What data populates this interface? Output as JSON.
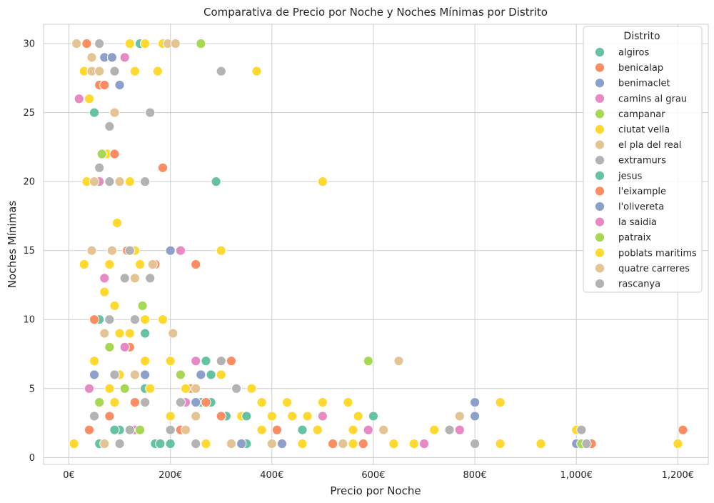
{
  "chart_data": {
    "type": "scatter",
    "title": "Comparativa de Precio por Noche y Noches Mínimas por Distrito",
    "xlabel": "Precio por Noche",
    "ylabel": "Noches Mínimas",
    "xlim": [
      -50,
      1260
    ],
    "ylim": [
      -0.5,
      31.4
    ],
    "x_ticks": [
      0,
      200,
      400,
      600,
      800,
      1000,
      1200
    ],
    "x_tick_labels": [
      "0€",
      "200€",
      "400€",
      "600€",
      "800€",
      "1,000€",
      "1,200€"
    ],
    "y_ticks": [
      0,
      5,
      10,
      15,
      20,
      25,
      30
    ],
    "y_tick_labels": [
      "0",
      "5",
      "10",
      "15",
      "20",
      "25",
      "30"
    ],
    "grid": true,
    "legend": {
      "title": "Distrito",
      "placement": "top-right"
    },
    "series": [
      {
        "name": "algiros",
        "color": "#66c2a5",
        "points": [
          [
            140,
            30
          ],
          [
            50,
            25
          ],
          [
            290,
            20
          ],
          [
            60,
            10
          ],
          [
            150,
            9
          ],
          [
            270,
            7
          ],
          [
            280,
            6
          ],
          [
            150,
            5
          ],
          [
            260,
            4
          ],
          [
            310,
            3
          ],
          [
            600,
            3
          ],
          [
            100,
            2
          ],
          [
            170,
            1
          ],
          [
            200,
            1
          ],
          [
            350,
            1
          ],
          [
            60,
            1
          ]
        ]
      },
      {
        "name": "benicalap",
        "color": "#fc8d62",
        "points": [
          [
            35,
            30
          ],
          [
            150,
            30
          ],
          [
            60,
            27
          ],
          [
            70,
            27
          ],
          [
            90,
            22
          ],
          [
            185,
            21
          ],
          [
            170,
            14
          ],
          [
            250,
            14
          ],
          [
            115,
            15
          ],
          [
            50,
            10
          ],
          [
            120,
            8
          ],
          [
            320,
            7
          ],
          [
            240,
            5
          ],
          [
            270,
            4
          ],
          [
            300,
            3
          ],
          [
            410,
            2
          ],
          [
            1210,
            2
          ],
          [
            520,
            1
          ],
          [
            580,
            1
          ],
          [
            1030,
            1
          ],
          [
            80,
            3
          ],
          [
            220,
            2
          ],
          [
            40,
            2
          ],
          [
            130,
            4
          ]
        ]
      },
      {
        "name": "benimaclet",
        "color": "#8da0cb",
        "points": [
          [
            70,
            29
          ],
          [
            85,
            29
          ],
          [
            100,
            27
          ],
          [
            200,
            15
          ],
          [
            50,
            6
          ],
          [
            260,
            6
          ],
          [
            250,
            4
          ],
          [
            800,
            4
          ],
          [
            800,
            3
          ],
          [
            1000,
            1
          ],
          [
            420,
            1
          ],
          [
            340,
            1
          ],
          [
            130,
            2
          ],
          [
            180,
            1
          ]
        ]
      },
      {
        "name": "camins al grau",
        "color": "#e78ac3",
        "points": [
          [
            110,
            29
          ],
          [
            20,
            26
          ],
          [
            60,
            20
          ],
          [
            220,
            15
          ],
          [
            70,
            13
          ],
          [
            110,
            8
          ],
          [
            250,
            7
          ],
          [
            40,
            5
          ],
          [
            230,
            4
          ],
          [
            500,
            3
          ],
          [
            770,
            2
          ],
          [
            700,
            1
          ],
          [
            590,
            2
          ],
          [
            130,
            2
          ],
          [
            300,
            3
          ]
        ]
      },
      {
        "name": "campanar",
        "color": "#a6d854",
        "points": [
          [
            260,
            30
          ],
          [
            65,
            22
          ],
          [
            145,
            11
          ],
          [
            80,
            8
          ],
          [
            590,
            7
          ],
          [
            220,
            6
          ],
          [
            110,
            5
          ],
          [
            60,
            4
          ],
          [
            1010,
            1
          ],
          [
            140,
            2
          ]
        ]
      },
      {
        "name": "ciutat vella",
        "color": "#ffd92f",
        "points": [
          [
            120,
            30
          ],
          [
            150,
            30
          ],
          [
            185,
            30
          ],
          [
            370,
            28
          ],
          [
            175,
            28
          ],
          [
            130,
            28
          ],
          [
            30,
            28
          ],
          [
            40,
            26
          ],
          [
            75,
            22
          ],
          [
            35,
            20
          ],
          [
            120,
            20
          ],
          [
            500,
            20
          ],
          [
            95,
            17
          ],
          [
            300,
            15
          ],
          [
            130,
            15
          ],
          [
            30,
            14
          ],
          [
            80,
            14
          ],
          [
            140,
            14
          ],
          [
            70,
            12
          ],
          [
            90,
            11
          ],
          [
            150,
            10
          ],
          [
            185,
            10
          ],
          [
            100,
            9
          ],
          [
            120,
            9
          ],
          [
            80,
            8
          ],
          [
            50,
            7
          ],
          [
            150,
            7
          ],
          [
            200,
            7
          ],
          [
            300,
            6
          ],
          [
            360,
            5
          ],
          [
            230,
            5
          ],
          [
            80,
            5
          ],
          [
            430,
            4
          ],
          [
            500,
            4
          ],
          [
            550,
            4
          ],
          [
            850,
            4
          ],
          [
            380,
            4
          ],
          [
            90,
            4
          ],
          [
            570,
            3
          ],
          [
            470,
            3
          ],
          [
            340,
            3
          ],
          [
            400,
            3
          ],
          [
            440,
            3
          ],
          [
            720,
            2
          ],
          [
            1000,
            2
          ],
          [
            490,
            2
          ],
          [
            560,
            2
          ],
          [
            380,
            2
          ],
          [
            10,
            1
          ],
          [
            460,
            1
          ],
          [
            640,
            1
          ],
          [
            850,
            1
          ],
          [
            930,
            1
          ],
          [
            1200,
            1
          ],
          [
            270,
            1
          ],
          [
            560,
            1
          ],
          [
            680,
            1
          ],
          [
            100,
            6
          ],
          [
            200,
            3
          ],
          [
            160,
            5
          ]
        ]
      },
      {
        "name": "el pla del real",
        "color": "#e5c494",
        "points": [
          [
            15,
            30
          ],
          [
            195,
            30
          ],
          [
            210,
            30
          ],
          [
            45,
            29
          ],
          [
            60,
            28
          ],
          [
            45,
            28
          ],
          [
            90,
            25
          ],
          [
            50,
            20
          ],
          [
            100,
            20
          ],
          [
            45,
            15
          ],
          [
            85,
            15
          ],
          [
            165,
            14
          ],
          [
            130,
            13
          ],
          [
            70,
            9
          ],
          [
            205,
            9
          ],
          [
            250,
            5
          ],
          [
            650,
            7
          ],
          [
            620,
            2
          ],
          [
            770,
            3
          ],
          [
            540,
            1
          ],
          [
            250,
            3
          ],
          [
            320,
            1
          ],
          [
            130,
            6
          ],
          [
            230,
            2
          ],
          [
            70,
            1
          ],
          [
            400,
            1
          ]
        ]
      },
      {
        "name": "extramurs",
        "color": "#b3b3b3",
        "points": [
          [
            60,
            30
          ],
          [
            90,
            28
          ],
          [
            300,
            28
          ],
          [
            80,
            24
          ],
          [
            160,
            25
          ],
          [
            60,
            21
          ],
          [
            150,
            20
          ],
          [
            80,
            20
          ],
          [
            120,
            15
          ],
          [
            110,
            13
          ],
          [
            160,
            13
          ],
          [
            80,
            10
          ],
          [
            130,
            10
          ],
          [
            300,
            7
          ],
          [
            330,
            5
          ],
          [
            220,
            4
          ],
          [
            750,
            2
          ],
          [
            1010,
            2
          ],
          [
            800,
            1
          ],
          [
            1020,
            1
          ],
          [
            50,
            3
          ],
          [
            150,
            4
          ],
          [
            100,
            1
          ],
          [
            250,
            1
          ],
          [
            120,
            2
          ],
          [
            200,
            2
          ],
          [
            90,
            6
          ]
        ]
      },
      {
        "name": "jesus",
        "color": "#66c2a5",
        "points": [
          [
            280,
            4
          ],
          [
            350,
            3
          ],
          [
            460,
            2
          ],
          [
            600,
            3
          ],
          [
            180,
            1
          ],
          [
            90,
            2
          ]
        ]
      },
      {
        "name": "l'eixample",
        "color": "#fc8d62",
        "points": [
          [
            90,
            22
          ],
          [
            170,
            14
          ],
          [
            250,
            14
          ],
          [
            120,
            8
          ],
          [
            320,
            7
          ],
          [
            270,
            4
          ],
          [
            410,
            2
          ],
          [
            580,
            1
          ],
          [
            1210,
            2
          ],
          [
            1030,
            1
          ],
          [
            300,
            3
          ]
        ]
      },
      {
        "name": "l'olivereta",
        "color": "#8da0cb",
        "points": [
          [
            200,
            15
          ],
          [
            260,
            6
          ],
          [
            250,
            4
          ],
          [
            800,
            4
          ],
          [
            800,
            3
          ],
          [
            1000,
            1
          ],
          [
            420,
            1
          ],
          [
            150,
            6
          ]
        ]
      },
      {
        "name": "la saidia",
        "color": "#e78ac3",
        "points": [
          [
            110,
            29
          ],
          [
            20,
            26
          ],
          [
            220,
            15
          ],
          [
            70,
            13
          ],
          [
            110,
            8
          ],
          [
            500,
            3
          ],
          [
            770,
            2
          ],
          [
            700,
            1
          ],
          [
            590,
            2
          ],
          [
            250,
            7
          ]
        ]
      },
      {
        "name": "patraix",
        "color": "#a6d854",
        "points": [
          [
            65,
            22
          ],
          [
            145,
            11
          ],
          [
            80,
            8
          ],
          [
            590,
            7
          ],
          [
            220,
            6
          ],
          [
            1010,
            1
          ]
        ]
      },
      {
        "name": "poblats maritims",
        "color": "#ffd92f",
        "points": [
          [
            370,
            28
          ],
          [
            500,
            20
          ],
          [
            95,
            17
          ],
          [
            300,
            15
          ],
          [
            70,
            12
          ],
          [
            90,
            11
          ],
          [
            360,
            5
          ],
          [
            430,
            4
          ],
          [
            500,
            4
          ],
          [
            550,
            4
          ],
          [
            850,
            4
          ],
          [
            720,
            2
          ],
          [
            1000,
            2
          ],
          [
            640,
            1
          ],
          [
            850,
            1
          ],
          [
            930,
            1
          ],
          [
            1200,
            1
          ],
          [
            570,
            3
          ],
          [
            560,
            2
          ],
          [
            680,
            1
          ]
        ]
      },
      {
        "name": "quatre carreres",
        "color": "#e5c494",
        "points": [
          [
            15,
            30
          ],
          [
            195,
            30
          ],
          [
            210,
            30
          ],
          [
            45,
            29
          ],
          [
            60,
            28
          ],
          [
            90,
            25
          ],
          [
            165,
            14
          ],
          [
            205,
            9
          ],
          [
            650,
            7
          ],
          [
            620,
            2
          ],
          [
            770,
            3
          ],
          [
            540,
            1
          ]
        ]
      },
      {
        "name": "rascanya",
        "color": "#b3b3b3",
        "points": [
          [
            60,
            30
          ],
          [
            300,
            28
          ],
          [
            160,
            25
          ],
          [
            80,
            24
          ],
          [
            60,
            21
          ],
          [
            150,
            20
          ],
          [
            160,
            13
          ],
          [
            330,
            5
          ],
          [
            750,
            2
          ],
          [
            1010,
            2
          ],
          [
            800,
            1
          ],
          [
            1020,
            1
          ]
        ]
      }
    ]
  }
}
